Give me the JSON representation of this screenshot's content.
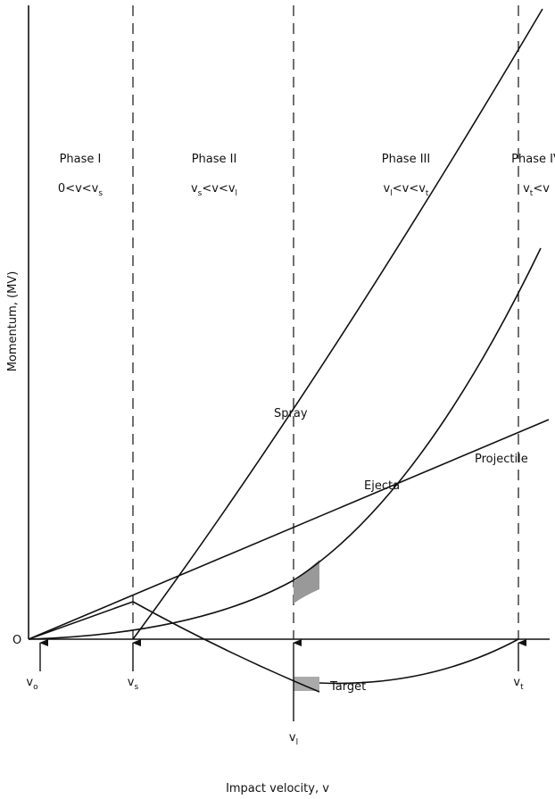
{
  "labels": {
    "origin": "O",
    "y_axis": "Momentum, (MV)",
    "x_axis": "Impact velocity, v"
  },
  "phases": [
    {
      "name": "Phase I",
      "condition": [
        "0<v<v",
        "s"
      ]
    },
    {
      "name": "Phase II",
      "condition": [
        "v",
        "s",
        "<v<v",
        "l"
      ]
    },
    {
      "name": "Phase III",
      "condition": [
        "v",
        "l",
        "<v<v",
        "t"
      ]
    },
    {
      "name": "Phase IV",
      "condition": [
        "v",
        "t",
        "<v"
      ]
    }
  ],
  "curves": {
    "spray": "Spray",
    "ejecta": "Ejecta",
    "projectile": "Projectile",
    "target": "Target"
  },
  "velocities": [
    [
      "v",
      "o"
    ],
    [
      "v",
      "s"
    ],
    [
      "v",
      "l"
    ],
    [
      "v",
      "t"
    ]
  ]
}
